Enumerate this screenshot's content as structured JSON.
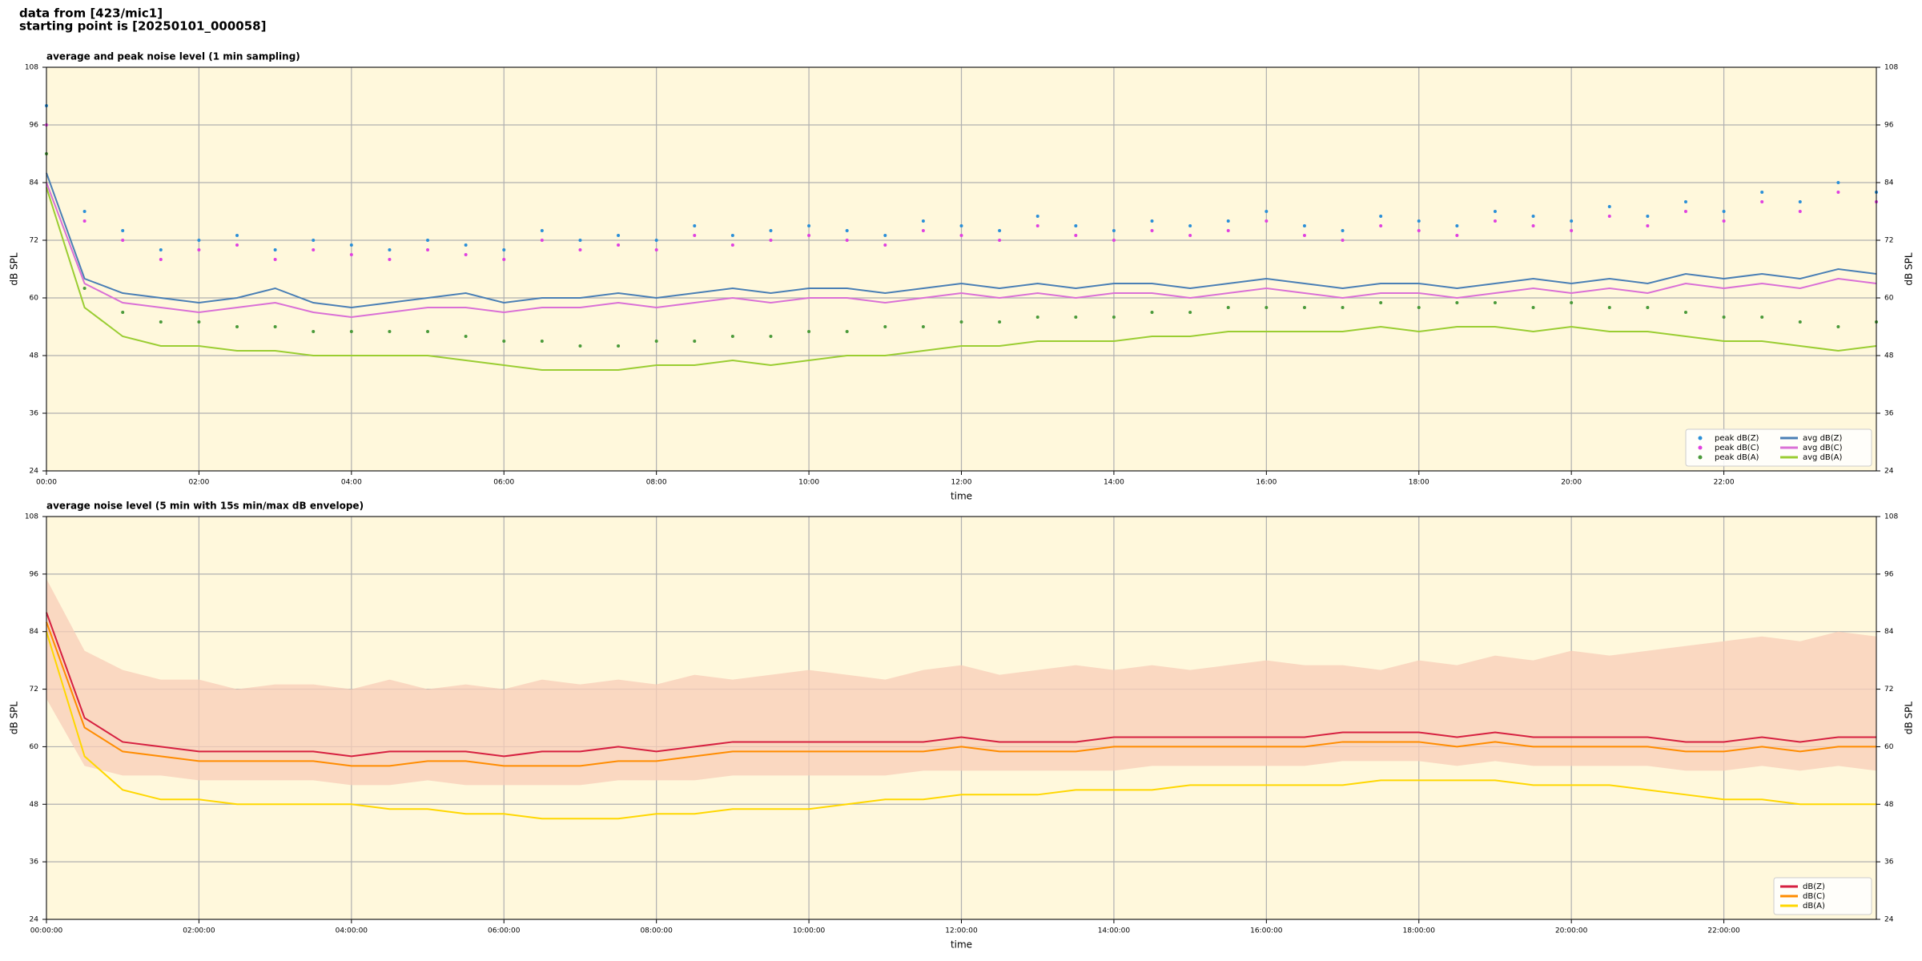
{
  "header": {
    "source": "data from [423/mic1]",
    "start": "starting point is [20250101_000058]"
  },
  "chart_data": [
    {
      "type": "line",
      "title": "average and peak noise level (1 min sampling)",
      "xlabel": "time",
      "ylabel": "dB SPL",
      "y2label": "dB SPL",
      "background": "#fff8dc",
      "grid": true,
      "legend": "lower right",
      "legend_columns": 2,
      "xlim": [
        0,
        24
      ],
      "ylim": [
        24,
        108
      ],
      "y2lim": [
        24,
        108
      ],
      "xticks": [
        {
          "value": 0,
          "label": "00:00"
        },
        {
          "value": 2,
          "label": "02:00"
        },
        {
          "value": 4,
          "label": "04:00"
        },
        {
          "value": 6,
          "label": "06:00"
        },
        {
          "value": 8,
          "label": "08:00"
        },
        {
          "value": 10,
          "label": "10:00"
        },
        {
          "value": 12,
          "label": "12:00"
        },
        {
          "value": 14,
          "label": "14:00"
        },
        {
          "value": 16,
          "label": "16:00"
        },
        {
          "value": 18,
          "label": "18:00"
        },
        {
          "value": 20,
          "label": "20:00"
        },
        {
          "value": 22,
          "label": "22:00"
        }
      ],
      "yticks": [
        24,
        36,
        48,
        60,
        72,
        84,
        96,
        108
      ],
      "y2ticks": [
        24,
        36,
        48,
        60,
        72,
        84,
        96,
        108
      ],
      "x": [
        0,
        0.5,
        1,
        1.5,
        2,
        2.5,
        3,
        3.5,
        4,
        4.5,
        5,
        5.5,
        6,
        6.5,
        7,
        7.5,
        8,
        8.5,
        9,
        9.5,
        10,
        10.5,
        11,
        11.5,
        12,
        12.5,
        13,
        13.5,
        14,
        14.5,
        15,
        15.5,
        16,
        16.5,
        17,
        17.5,
        18,
        18.5,
        19,
        19.5,
        20,
        20.5,
        21,
        21.5,
        22,
        22.5,
        23,
        23.5,
        24
      ],
      "series": [
        {
          "name": "peak dB(Z)",
          "mode": "markers",
          "color": "#2a8fd8",
          "values": [
            100,
            78,
            74,
            70,
            72,
            73,
            70,
            72,
            71,
            70,
            72,
            71,
            70,
            74,
            72,
            73,
            72,
            75,
            73,
            74,
            75,
            74,
            73,
            76,
            75,
            74,
            77,
            75,
            74,
            76,
            75,
            76,
            78,
            75,
            74,
            77,
            76,
            75,
            78,
            77,
            76,
            79,
            77,
            80,
            78,
            82,
            80,
            84,
            82
          ]
        },
        {
          "name": "peak dB(C)",
          "mode": "markers",
          "color": "#e040e0",
          "values": [
            96,
            76,
            72,
            68,
            70,
            71,
            68,
            70,
            69,
            68,
            70,
            69,
            68,
            72,
            70,
            71,
            70,
            73,
            71,
            72,
            73,
            72,
            71,
            74,
            73,
            72,
            75,
            73,
            72,
            74,
            73,
            74,
            76,
            73,
            72,
            75,
            74,
            73,
            76,
            75,
            74,
            77,
            75,
            78,
            76,
            80,
            78,
            82,
            80
          ]
        },
        {
          "name": "peak dB(A)",
          "mode": "markers",
          "color": "#4a9a3a",
          "values": [
            90,
            62,
            57,
            55,
            55,
            54,
            54,
            53,
            53,
            53,
            53,
            52,
            51,
            51,
            50,
            50,
            51,
            51,
            52,
            52,
            53,
            53,
            54,
            54,
            55,
            55,
            56,
            56,
            56,
            57,
            57,
            58,
            58,
            58,
            58,
            59,
            58,
            59,
            59,
            58,
            59,
            58,
            58,
            57,
            56,
            56,
            55,
            54,
            55
          ]
        },
        {
          "name": "avg dB(Z)",
          "mode": "lines",
          "color": "#4a7fb5",
          "values": [
            86,
            64,
            61,
            60,
            59,
            60,
            62,
            59,
            58,
            59,
            60,
            61,
            59,
            60,
            60,
            61,
            60,
            61,
            62,
            61,
            62,
            62,
            61,
            62,
            63,
            62,
            63,
            62,
            63,
            63,
            62,
            63,
            64,
            63,
            62,
            63,
            63,
            62,
            63,
            64,
            63,
            64,
            63,
            65,
            64,
            65,
            64,
            66,
            65
          ]
        },
        {
          "name": "avg dB(C)",
          "mode": "lines",
          "color": "#da70d6",
          "values": [
            84,
            63,
            59,
            58,
            57,
            58,
            59,
            57,
            56,
            57,
            58,
            58,
            57,
            58,
            58,
            59,
            58,
            59,
            60,
            59,
            60,
            60,
            59,
            60,
            61,
            60,
            61,
            60,
            61,
            61,
            60,
            61,
            62,
            61,
            60,
            61,
            61,
            60,
            61,
            62,
            61,
            62,
            61,
            63,
            62,
            63,
            62,
            64,
            63
          ]
        },
        {
          "name": "avg dB(A)",
          "mode": "lines",
          "color": "#9acd32",
          "values": [
            83,
            58,
            52,
            50,
            50,
            49,
            49,
            48,
            48,
            48,
            48,
            47,
            46,
            45,
            45,
            45,
            46,
            46,
            47,
            46,
            47,
            48,
            48,
            49,
            50,
            50,
            51,
            51,
            51,
            52,
            52,
            53,
            53,
            53,
            53,
            54,
            53,
            54,
            54,
            53,
            54,
            53,
            53,
            52,
            51,
            51,
            50,
            49,
            50
          ]
        }
      ]
    },
    {
      "type": "line",
      "title": "average noise level (5 min with 15s min/max dB envelope)",
      "xlabel": "time",
      "ylabel": "dB SPL",
      "y2label": "dB SPL",
      "background": "#fff8dc",
      "grid": true,
      "legend": "lower right",
      "legend_columns": 1,
      "xlim": [
        0,
        24
      ],
      "ylim": [
        24,
        108
      ],
      "y2lim": [
        24,
        108
      ],
      "xticks": [
        {
          "value": 0,
          "label": "00:00:00"
        },
        {
          "value": 2,
          "label": "02:00:00"
        },
        {
          "value": 4,
          "label": "04:00:00"
        },
        {
          "value": 6,
          "label": "06:00:00"
        },
        {
          "value": 8,
          "label": "08:00:00"
        },
        {
          "value": 10,
          "label": "10:00:00"
        },
        {
          "value": 12,
          "label": "12:00:00"
        },
        {
          "value": 14,
          "label": "14:00:00"
        },
        {
          "value": 16,
          "label": "16:00:00"
        },
        {
          "value": 18,
          "label": "18:00:00"
        },
        {
          "value": 20,
          "label": "20:00:00"
        },
        {
          "value": 22,
          "label": "22:00:00"
        }
      ],
      "yticks": [
        24,
        36,
        48,
        60,
        72,
        84,
        96,
        108
      ],
      "y2ticks": [
        24,
        36,
        48,
        60,
        72,
        84,
        96,
        108
      ],
      "x": [
        0,
        0.5,
        1,
        1.5,
        2,
        2.5,
        3,
        3.5,
        4,
        4.5,
        5,
        5.5,
        6,
        6.5,
        7,
        7.5,
        8,
        8.5,
        9,
        9.5,
        10,
        10.5,
        11,
        11.5,
        12,
        12.5,
        13,
        13.5,
        14,
        14.5,
        15,
        15.5,
        16,
        16.5,
        17,
        17.5,
        18,
        18.5,
        19,
        19.5,
        20,
        20.5,
        21,
        21.5,
        22,
        22.5,
        23,
        23.5,
        24
      ],
      "envelope": {
        "color": "#f8cdb8",
        "max": [
          95,
          80,
          76,
          74,
          74,
          72,
          73,
          73,
          72,
          74,
          72,
          73,
          72,
          74,
          73,
          74,
          73,
          75,
          74,
          75,
          76,
          75,
          74,
          76,
          77,
          75,
          76,
          77,
          76,
          77,
          76,
          77,
          78,
          77,
          77,
          76,
          78,
          77,
          79,
          78,
          80,
          79,
          80,
          81,
          82,
          83,
          82,
          84,
          83
        ],
        "min": [
          70,
          56,
          54,
          54,
          53,
          53,
          53,
          53,
          52,
          52,
          53,
          52,
          52,
          52,
          52,
          53,
          53,
          53,
          54,
          54,
          54,
          54,
          54,
          55,
          55,
          55,
          55,
          55,
          55,
          56,
          56,
          56,
          56,
          56,
          57,
          57,
          57,
          56,
          57,
          56,
          56,
          56,
          56,
          55,
          55,
          56,
          55,
          56,
          55
        ]
      },
      "series": [
        {
          "name": "dB(Z)",
          "mode": "lines",
          "color": "#d62040",
          "values": [
            88,
            66,
            61,
            60,
            59,
            59,
            59,
            59,
            58,
            59,
            59,
            59,
            58,
            59,
            59,
            60,
            59,
            60,
            61,
            61,
            61,
            61,
            61,
            61,
            62,
            61,
            61,
            61,
            62,
            62,
            62,
            62,
            62,
            62,
            63,
            63,
            63,
            62,
            63,
            62,
            62,
            62,
            62,
            61,
            61,
            62,
            61,
            62,
            62
          ]
        },
        {
          "name": "dB(C)",
          "mode": "lines",
          "color": "#ff8c00",
          "values": [
            86,
            64,
            59,
            58,
            57,
            57,
            57,
            57,
            56,
            56,
            57,
            57,
            56,
            56,
            56,
            57,
            57,
            58,
            59,
            59,
            59,
            59,
            59,
            59,
            60,
            59,
            59,
            59,
            60,
            60,
            60,
            60,
            60,
            60,
            61,
            61,
            61,
            60,
            61,
            60,
            60,
            60,
            60,
            59,
            59,
            60,
            59,
            60,
            60
          ]
        },
        {
          "name": "dB(A)",
          "mode": "lines",
          "color": "#ffd700",
          "values": [
            84,
            58,
            51,
            49,
            49,
            48,
            48,
            48,
            48,
            47,
            47,
            46,
            46,
            45,
            45,
            45,
            46,
            46,
            47,
            47,
            47,
            48,
            49,
            49,
            50,
            50,
            50,
            51,
            51,
            51,
            52,
            52,
            52,
            52,
            52,
            53,
            53,
            53,
            53,
            52,
            52,
            52,
            51,
            50,
            49,
            49,
            48,
            48,
            48
          ]
        }
      ]
    }
  ]
}
